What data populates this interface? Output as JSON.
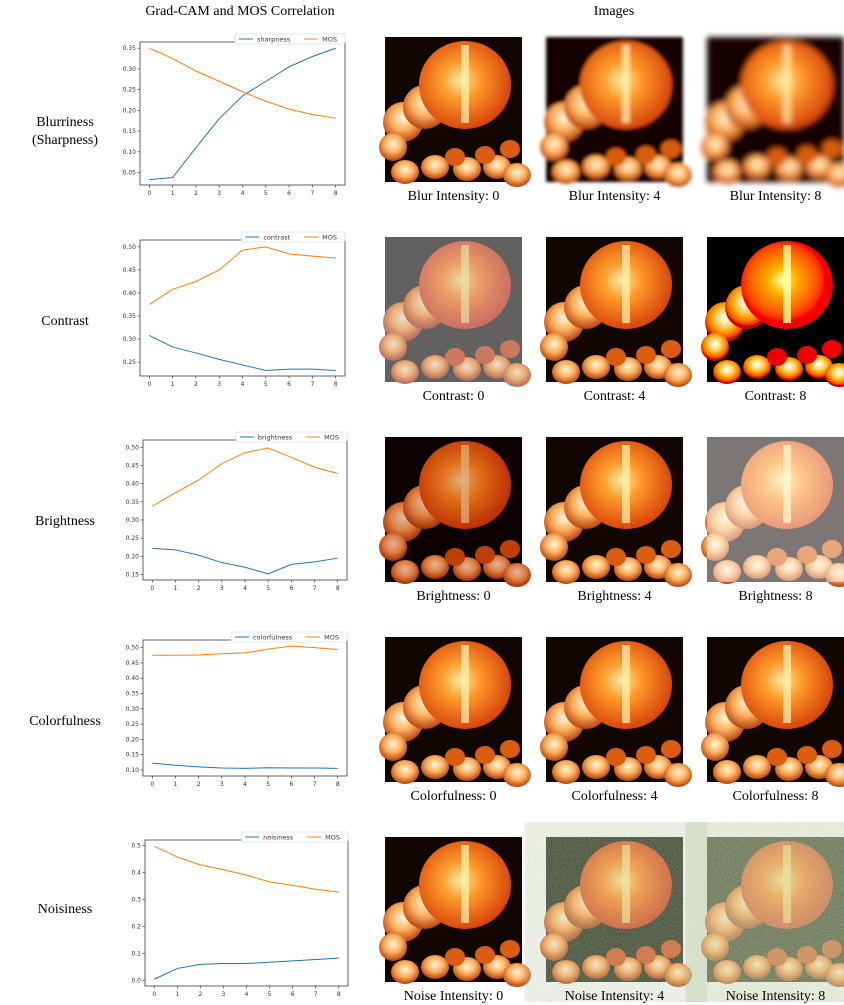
{
  "header": {
    "left": "Grad-CAM and MOS Correlation",
    "right": "Images"
  },
  "rows": [
    {
      "label": [
        "Blurriness",
        "(Sharpness)"
      ],
      "captions": [
        "Blur Intensity: 0",
        "Blur Intensity: 4",
        "Blur Intensity: 8"
      ]
    },
    {
      "label": [
        "Contrast"
      ],
      "captions": [
        "Contrast: 0",
        "Contrast: 4",
        "Contrast: 8"
      ]
    },
    {
      "label": [
        "Brightness"
      ],
      "captions": [
        "Brightness: 0",
        "Brightness: 4",
        "Brightness: 8"
      ]
    },
    {
      "label": [
        "Colorfulness"
      ],
      "captions": [
        "Colorfulness: 0",
        "Colorfulness: 4",
        "Colorfulness: 8"
      ]
    },
    {
      "label": [
        "Noisiness"
      ],
      "captions": [
        "Noise Intensity: 0",
        "Noise Intensity: 4",
        "Noise Intensity: 8"
      ]
    }
  ],
  "chart_data": [
    {
      "type": "line",
      "x": [
        0,
        1,
        2,
        3,
        4,
        5,
        6,
        7,
        8
      ],
      "xlim": [
        -0.4,
        8.4
      ],
      "xticks": [
        0,
        1,
        2,
        3,
        4,
        5,
        6,
        7,
        8
      ],
      "ylim": [
        0.02,
        0.365
      ],
      "yticks": [
        0.05,
        {
          "value": 0.1,
          "label": "0.10"
        },
        0.15,
        {
          "value": 0.2,
          "label": "0.20"
        },
        0.25,
        {
          "value": 0.3,
          "label": "0.30"
        },
        0.35
      ],
      "legend": "upper right",
      "series": [
        {
          "name": "sharpness",
          "color": "#1f77b4",
          "values": [
            0.033,
            0.038,
            0.11,
            0.18,
            0.235,
            0.27,
            0.305,
            0.33,
            0.35
          ]
        },
        {
          "name": "MOS",
          "color": "#ff7f0e",
          "values": [
            0.35,
            0.325,
            0.295,
            0.27,
            0.245,
            0.222,
            0.203,
            0.19,
            0.181
          ]
        }
      ]
    },
    {
      "type": "line",
      "x": [
        0,
        1,
        2,
        3,
        4,
        5,
        6,
        7,
        8
      ],
      "xlim": [
        -0.4,
        8.4
      ],
      "xticks": [
        0,
        1,
        2,
        3,
        4,
        5,
        6,
        7,
        8
      ],
      "ylim": [
        0.22,
        0.515
      ],
      "yticks": [
        0.25,
        {
          "value": 0.3,
          "label": "0.30"
        },
        0.35,
        {
          "value": 0.4,
          "label": "0.40"
        },
        0.45,
        {
          "value": 0.5,
          "label": "0.50"
        }
      ],
      "legend": "upper right",
      "series": [
        {
          "name": "contrast",
          "color": "#1f77b4",
          "values": [
            0.308,
            0.283,
            0.27,
            0.256,
            0.244,
            0.232,
            0.235,
            0.235,
            0.232
          ]
        },
        {
          "name": "MOS",
          "color": "#ff7f0e",
          "values": [
            0.375,
            0.408,
            0.425,
            0.45,
            0.493,
            0.5,
            0.485,
            0.48,
            0.476
          ]
        }
      ]
    },
    {
      "type": "line",
      "x": [
        0,
        1,
        2,
        3,
        4,
        5,
        6,
        7,
        8
      ],
      "xlim": [
        -0.4,
        8.4
      ],
      "xticks": [
        0,
        1,
        2,
        3,
        4,
        5,
        6,
        7,
        8
      ],
      "ylim": [
        0.135,
        0.52
      ],
      "yticks": [
        0.15,
        {
          "value": 0.2,
          "label": "0.20"
        },
        0.25,
        {
          "value": 0.3,
          "label": "0.30"
        },
        0.35,
        {
          "value": 0.4,
          "label": "0.40"
        },
        0.45,
        {
          "value": 0.5,
          "label": "0.50"
        }
      ],
      "legend": "upper right",
      "series": [
        {
          "name": "brightness",
          "color": "#1f77b4",
          "values": [
            0.222,
            0.218,
            0.203,
            0.183,
            0.17,
            0.152,
            0.178,
            0.185,
            0.195
          ]
        },
        {
          "name": "MOS",
          "color": "#ff7f0e",
          "values": [
            0.338,
            0.375,
            0.41,
            0.455,
            0.485,
            0.498,
            0.472,
            0.445,
            0.428
          ]
        }
      ]
    },
    {
      "type": "line",
      "x": [
        0,
        1,
        2,
        3,
        4,
        5,
        6,
        7,
        8
      ],
      "xlim": [
        -0.4,
        8.4
      ],
      "xticks": [
        0,
        1,
        2,
        3,
        4,
        5,
        6,
        7,
        8
      ],
      "ylim": [
        0.08,
        0.525
      ],
      "yticks": [
        {
          "value": 0.1,
          "label": "0.10"
        },
        0.15,
        {
          "value": 0.2,
          "label": "0.20"
        },
        0.25,
        {
          "value": 0.3,
          "label": "0.30"
        },
        0.35,
        {
          "value": 0.4,
          "label": "0.40"
        },
        0.45,
        {
          "value": 0.5,
          "label": "0.50"
        }
      ],
      "legend": "upper right",
      "series": [
        {
          "name": "colorfulness",
          "color": "#1f77b4",
          "values": [
            0.122,
            0.115,
            0.11,
            0.106,
            0.105,
            0.107,
            0.106,
            0.106,
            0.105
          ]
        },
        {
          "name": "MOS",
          "color": "#ff7f0e",
          "values": [
            0.475,
            0.475,
            0.476,
            0.48,
            0.483,
            0.495,
            0.505,
            0.5,
            0.494
          ]
        }
      ]
    },
    {
      "type": "line",
      "x": [
        0,
        1,
        2,
        3,
        4,
        5,
        6,
        7,
        8
      ],
      "xlim": [
        -0.4,
        8.4
      ],
      "xticks": [
        0,
        1,
        2,
        3,
        4,
        5,
        6,
        7,
        8
      ],
      "ylim": [
        -0.02,
        0.52
      ],
      "yticks": [
        {
          "value": 0,
          "label": "0.0"
        },
        0.1,
        0.2,
        0.3,
        0.4,
        0.5
      ],
      "legend": "upper right",
      "series": [
        {
          "name": "noisiness",
          "color": "#1f77b4",
          "values": [
            0.005,
            0.045,
            0.06,
            0.063,
            0.063,
            0.068,
            0.073,
            0.078,
            0.083
          ]
        },
        {
          "name": "MOS",
          "color": "#ff7f0e",
          "values": [
            0.497,
            0.457,
            0.428,
            0.41,
            0.39,
            0.365,
            0.352,
            0.338,
            0.327
          ]
        }
      ]
    }
  ]
}
